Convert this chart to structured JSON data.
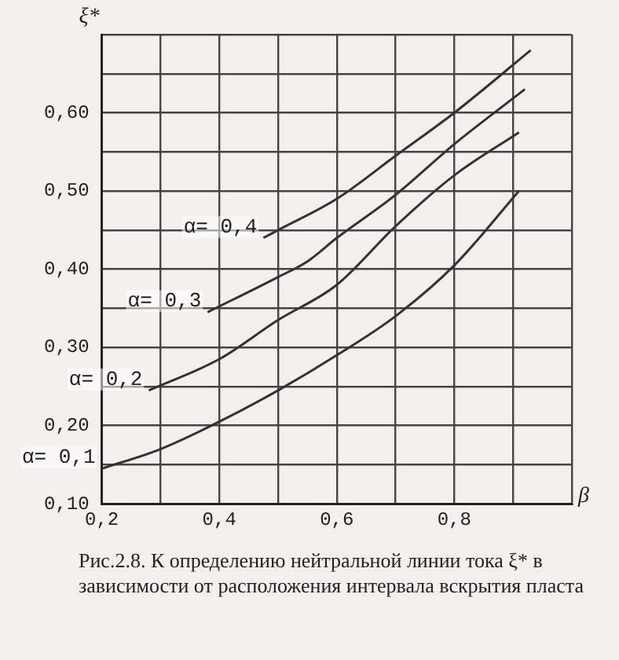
{
  "chart_data": {
    "type": "line",
    "xlabel": "β",
    "ylabel": "ξ*",
    "xlim": [
      0.2,
      1.0
    ],
    "ylim": [
      0.1,
      0.7
    ],
    "xticks": [
      {
        "value": 0.2,
        "label": "0,2"
      },
      {
        "value": 0.3,
        "label": null
      },
      {
        "value": 0.4,
        "label": "0,4"
      },
      {
        "value": 0.5,
        "label": null
      },
      {
        "value": 0.6,
        "label": "0,6"
      },
      {
        "value": 0.7,
        "label": null
      },
      {
        "value": 0.8,
        "label": "0,8"
      },
      {
        "value": 0.9,
        "label": null
      },
      {
        "value": 1.0,
        "label": null
      }
    ],
    "yticks": [
      {
        "value": 0.1,
        "label": "0,10"
      },
      {
        "value": 0.15,
        "label": null
      },
      {
        "value": 0.2,
        "label": "0,20"
      },
      {
        "value": 0.25,
        "label": null
      },
      {
        "value": 0.3,
        "label": "0,30"
      },
      {
        "value": 0.35,
        "label": null
      },
      {
        "value": 0.4,
        "label": "0,40"
      },
      {
        "value": 0.45,
        "label": null
      },
      {
        "value": 0.5,
        "label": "0,50"
      },
      {
        "value": 0.55,
        "label": null
      },
      {
        "value": 0.6,
        "label": "0,60"
      },
      {
        "value": 0.65,
        "label": null
      },
      {
        "value": 0.7,
        "label": null
      }
    ],
    "grid": true,
    "legend": false,
    "marker": "none",
    "line_style": "solid",
    "series": [
      {
        "name": "α= 0,1",
        "color": "#333333",
        "x": [
          0.2,
          0.3,
          0.4,
          0.5,
          0.6,
          0.7,
          0.8,
          0.91
        ],
        "values": [
          0.145,
          0.17,
          0.205,
          0.245,
          0.29,
          0.34,
          0.405,
          0.5
        ]
      },
      {
        "name": "α= 0,2",
        "color": "#333333",
        "x": [
          0.28,
          0.4,
          0.5,
          0.6,
          0.7,
          0.8,
          0.91
        ],
        "values": [
          0.245,
          0.285,
          0.335,
          0.38,
          0.455,
          0.52,
          0.575
        ]
      },
      {
        "name": "α= 0,3",
        "color": "#333333",
        "x": [
          0.38,
          0.5,
          0.55,
          0.6,
          0.7,
          0.8,
          0.92
        ],
        "values": [
          0.345,
          0.39,
          0.41,
          0.44,
          0.495,
          0.56,
          0.63
        ]
      },
      {
        "name": "α= 0,4",
        "color": "#333333",
        "x": [
          0.475,
          0.5,
          0.6,
          0.7,
          0.8,
          0.93
        ],
        "values": [
          0.44,
          0.45,
          0.49,
          0.545,
          0.6,
          0.68
        ]
      }
    ],
    "annotations": [
      "Рис.2.8.   К определению нейтральной линии тока ξ* в зависимости от расположения интервала вскрытия пласта"
    ]
  }
}
